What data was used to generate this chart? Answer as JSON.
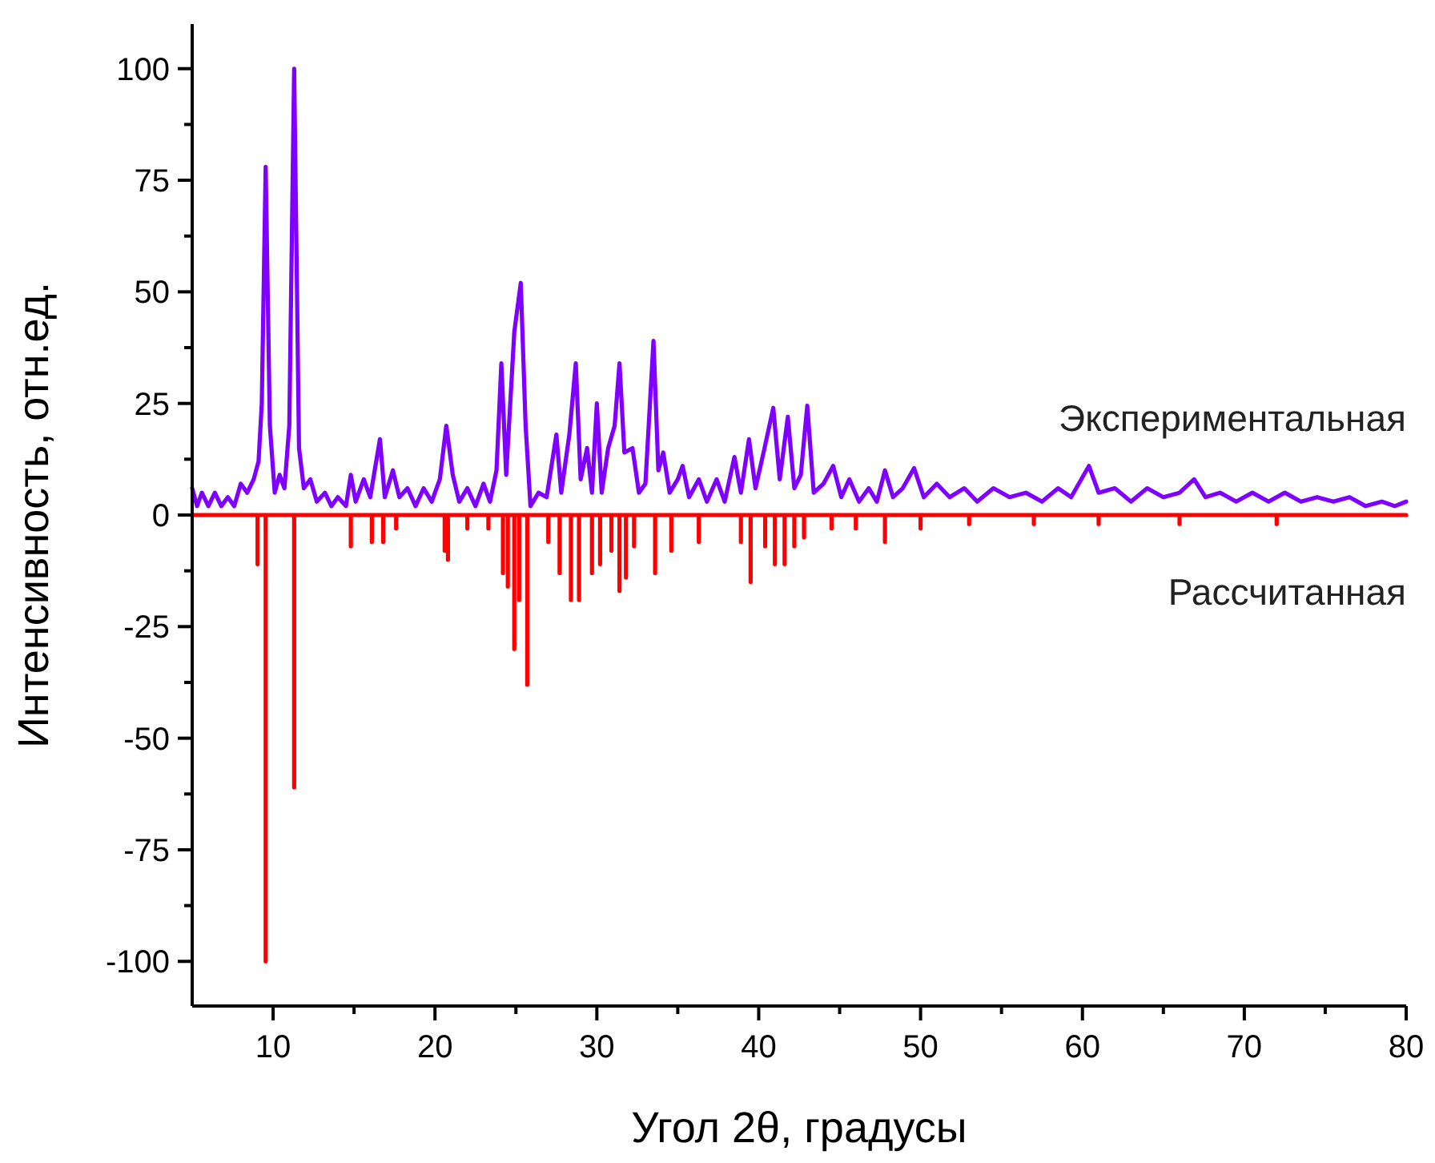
{
  "chart_data": {
    "type": "line",
    "xlabel": "Угол 2θ, градусы",
    "ylabel": "Интенсивность, отн.ед.",
    "xlim": [
      5,
      80
    ],
    "xticks": [
      10,
      {
        "value": 15,
        "label": null
      },
      20,
      {
        "value": 25,
        "label": null
      },
      30,
      {
        "value": 35,
        "label": null
      },
      40,
      {
        "value": 45,
        "label": null
      },
      50,
      {
        "value": 55,
        "label": null
      },
      60,
      {
        "value": 65,
        "label": null
      },
      70,
      {
        "value": 75,
        "label": null
      },
      80
    ],
    "ylim": [
      -110,
      110
    ],
    "yticks": [
      -100,
      {
        "value": -87.5,
        "label": null
      },
      -75,
      {
        "value": -62.5,
        "label": null
      },
      -50,
      {
        "value": -37.5,
        "label": null
      },
      -25,
      {
        "value": -12.5,
        "label": null
      },
      0,
      {
        "value": 12.5,
        "label": null
      },
      25,
      {
        "value": 37.5,
        "label": null
      },
      50,
      {
        "value": 62.5,
        "label": null
      },
      75,
      {
        "value": 87.5,
        "label": null
      },
      100
    ],
    "grid": false,
    "legend": false,
    "marker": "none",
    "line_style": "solid",
    "series": [
      {
        "name": "Экспериментальная",
        "color": "#7f00ff",
        "x": [
          5,
          5.3,
          5.6,
          6,
          6.4,
          6.8,
          7.2,
          7.6,
          8,
          8.4,
          8.8,
          9.1,
          9.3,
          9.54,
          9.8,
          10.1,
          10.4,
          10.7,
          11,
          11.3,
          11.6,
          11.9,
          12.3,
          12.7,
          13.2,
          13.6,
          14,
          14.5,
          14.8,
          15.1,
          15.6,
          16,
          16.6,
          16.9,
          17.4,
          17.8,
          18.3,
          18.8,
          19.3,
          19.8,
          20.3,
          20.7,
          21.1,
          21.5,
          22,
          22.5,
          23,
          23.4,
          23.8,
          24.1,
          24.4,
          24.9,
          25.3,
          25.6,
          25.9,
          26.4,
          26.9,
          27.5,
          27.8,
          28.3,
          28.7,
          29,
          29.4,
          29.7,
          30,
          30.3,
          30.7,
          31.1,
          31.4,
          31.7,
          32.2,
          32.6,
          33,
          33.5,
          33.8,
          34.1,
          34.5,
          35,
          35.3,
          35.7,
          36.3,
          36.8,
          37.4,
          37.9,
          38.5,
          38.9,
          39.4,
          39.8,
          40.3,
          40.9,
          41.3,
          41.8,
          42.2,
          42.6,
          43,
          43.4,
          44,
          44.6,
          45.1,
          45.6,
          46.2,
          46.8,
          47.3,
          47.8,
          48.3,
          48.9,
          49.6,
          50.2,
          51,
          51.8,
          52.7,
          53.5,
          54.5,
          55.5,
          56.5,
          57.5,
          58.5,
          59.3,
          60.4,
          61,
          62,
          63,
          64,
          65,
          66,
          66.9,
          67.6,
          68.5,
          69.5,
          70.5,
          71.5,
          72.5,
          73.5,
          74.5,
          75.5,
          76.5,
          77.5,
          78.5,
          79.3,
          80
        ],
        "values": [
          6,
          2,
          5,
          2,
          5,
          2,
          4,
          2,
          7,
          5,
          8,
          12,
          25,
          78,
          20,
          5,
          9,
          6,
          20,
          100,
          15,
          6,
          8,
          3,
          5,
          2,
          4,
          2,
          9,
          3,
          8,
          4,
          17,
          4,
          10,
          4,
          6,
          2,
          6,
          3,
          8,
          20,
          9,
          3,
          6,
          2,
          7,
          3,
          10,
          34,
          9,
          41,
          52,
          20,
          2,
          5,
          4,
          18,
          5,
          18,
          34,
          8,
          15,
          5,
          25,
          5,
          15,
          20,
          34,
          14,
          15,
          5,
          7,
          39,
          10,
          14,
          5,
          8,
          11,
          4,
          8,
          3,
          8,
          3,
          13,
          5,
          17,
          6,
          14,
          24,
          8,
          22,
          6,
          9,
          24.5,
          5,
          7,
          11,
          4,
          8,
          3,
          6,
          3,
          10,
          4,
          6,
          10.5,
          4,
          7,
          4,
          6,
          3,
          6,
          4,
          5,
          3,
          6,
          4,
          11,
          5,
          6,
          3,
          6,
          4,
          5,
          8,
          4,
          5,
          3,
          5,
          3,
          5,
          3,
          4,
          3,
          4,
          2,
          3,
          2,
          3
        ]
      },
      {
        "name": "Рассчитанная",
        "color": "#ff0000",
        "x": [
          5,
          9.04,
          9.04,
          9.04,
          9.54,
          9.54,
          9.54,
          11.3,
          11.3,
          11.3,
          14.8,
          14.8,
          14.8,
          16.1,
          16.1,
          16.1,
          16.8,
          16.8,
          16.8,
          17.6,
          17.6,
          17.6,
          20.6,
          20.6,
          20.6,
          20.8,
          20.8,
          20.8,
          22,
          22,
          22,
          23.3,
          23.3,
          23.3,
          24.2,
          24.2,
          24.2,
          24.5,
          24.5,
          24.5,
          24.9,
          24.9,
          24.9,
          25.2,
          25.2,
          25.2,
          25.7,
          25.7,
          25.7,
          27,
          27,
          27,
          27.7,
          27.7,
          27.7,
          28.4,
          28.4,
          28.4,
          28.9,
          28.9,
          28.9,
          29.7,
          29.7,
          29.7,
          30.2,
          30.2,
          30.2,
          30.9,
          30.9,
          30.9,
          31.4,
          31.4,
          31.4,
          31.8,
          31.8,
          31.8,
          32.3,
          32.3,
          32.3,
          33.6,
          33.6,
          33.6,
          34.6,
          34.6,
          34.6,
          36.3,
          36.3,
          36.3,
          38.9,
          38.9,
          38.9,
          39.5,
          39.5,
          39.5,
          40.4,
          40.4,
          40.4,
          41,
          41,
          41,
          41.6,
          41.6,
          41.6,
          42.2,
          42.2,
          42.2,
          42.8,
          42.8,
          42.8,
          44.5,
          44.5,
          44.5,
          46,
          46,
          46,
          47.8,
          47.8,
          47.8,
          50,
          50,
          50,
          53,
          53,
          53,
          57,
          57,
          57,
          61,
          61,
          61,
          66,
          66,
          66,
          72,
          72,
          72,
          80
        ],
        "values": [
          0,
          0,
          -11,
          0,
          0,
          -100,
          0,
          0,
          -61,
          0,
          0,
          -7,
          0,
          0,
          -6,
          0,
          0,
          -6,
          0,
          0,
          -3,
          0,
          0,
          -8,
          0,
          0,
          -10,
          0,
          0,
          -3,
          0,
          0,
          -3,
          0,
          0,
          -13,
          0,
          0,
          -16,
          0,
          0,
          -30,
          0,
          0,
          -19,
          0,
          0,
          -38,
          0,
          0,
          -6,
          0,
          0,
          -13,
          0,
          0,
          -19,
          0,
          0,
          -19,
          0,
          0,
          -13,
          0,
          0,
          -11,
          0,
          0,
          -8,
          0,
          0,
          -17,
          0,
          0,
          -14,
          0,
          0,
          -7,
          0,
          0,
          -13,
          0,
          0,
          -8,
          0,
          0,
          -6,
          0,
          0,
          -6,
          0,
          0,
          -15,
          0,
          0,
          -7,
          0,
          0,
          -11,
          0,
          0,
          -11,
          0,
          0,
          -7,
          0,
          0,
          -5,
          0,
          0,
          -3,
          0,
          0,
          -3,
          0,
          0,
          -6,
          0,
          0,
          -3,
          0,
          0,
          -2,
          0,
          0,
          -2,
          0,
          0,
          -2,
          0,
          0,
          -2,
          0,
          0,
          -2,
          0,
          0
        ]
      }
    ]
  }
}
